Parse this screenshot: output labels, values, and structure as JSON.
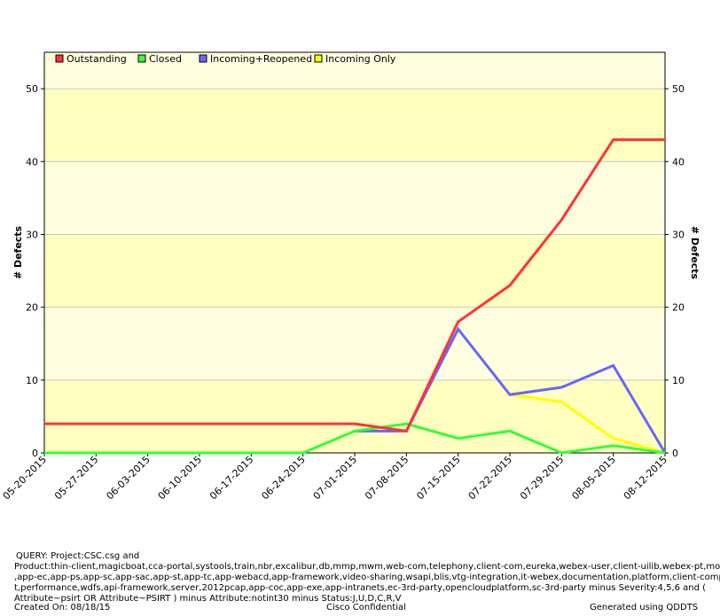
{
  "chart_data": {
    "type": "line",
    "title": "",
    "ylabel": "# Defects",
    "ylabel_right": "# Defects",
    "ylim": [
      0,
      55
    ],
    "yticks": [
      0,
      10,
      20,
      30,
      40,
      50
    ],
    "grid": true,
    "legend_position": "top-left",
    "categories": [
      "05-20-2015",
      "05-27-2015",
      "06-03-2015",
      "06-10-2015",
      "06-17-2015",
      "06-24-2015",
      "07-01-2015",
      "07-08-2015",
      "07-15-2015",
      "07-22-2015",
      "07-29-2015",
      "08-05-2015",
      "08-12-2015"
    ],
    "series": [
      {
        "name": "Outstanding",
        "color": "#ff3333",
        "values": [
          4,
          4,
          4,
          4,
          4,
          4,
          4,
          3,
          18,
          23,
          32,
          43,
          43
        ]
      },
      {
        "name": "Closed",
        "color": "#33ff33",
        "values": [
          0,
          0,
          0,
          0,
          0,
          0,
          3,
          4,
          2,
          3,
          0,
          1,
          0
        ]
      },
      {
        "name": "Incoming+Reopened",
        "color": "#6666ff",
        "values": [
          null,
          null,
          null,
          null,
          null,
          null,
          3,
          3,
          17,
          8,
          9,
          12,
          0
        ]
      },
      {
        "name": "Incoming Only",
        "color": "#ffff00",
        "values": [
          null,
          null,
          null,
          null,
          null,
          null,
          null,
          null,
          null,
          8,
          7,
          2,
          0
        ]
      }
    ]
  },
  "footer": {
    "query_lines": [
      "QUERY: Project:CSC.csg and",
      "Product:thin-client,magicboat,cca-portal,systools,train,nbr,excalibur,db,mmp,mwm,web-com,telephony,client-com,eureka,webex-user,client-uilib,webex-pt,mobile,app-mc",
      ",app-ec,app-ps,app-sc,app-sac,app-st,app-tc,app-webacd,app-framework,video-sharing,wsapi,blis,vtg-integration,it-webex,documentation,platform,client-componen",
      "t,performance,wdfs,api-framework,server,2012pcap,app-coc,app-exe,app-intranets,ec-3rd-party,opencloudplatform,sc-3rd-party minus Severity:4,5,6 and (",
      "Attribute~psirt OR Attribute~PSIRT ) minus Attribute:notint30 minus Status:J,U,D,C,R,V"
    ],
    "created": "Created On: 08/18/15",
    "confidential": "Cisco Confidential",
    "generated": "Generated using QDDTS"
  }
}
